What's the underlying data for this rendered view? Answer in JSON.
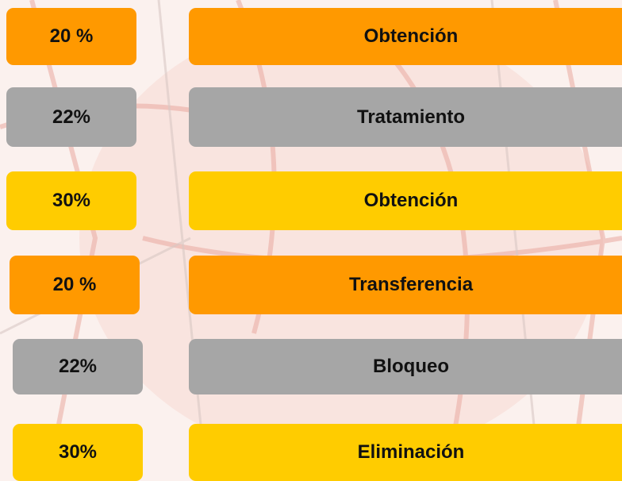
{
  "rows": [
    {
      "percent": "20 %",
      "label": "Obtención",
      "color": "#FF9900"
    },
    {
      "percent": "22%",
      "label": "Tratamiento",
      "color": "#A6A6A6"
    },
    {
      "percent": "30%",
      "label": "Obtención",
      "color": "#FFCC00"
    },
    {
      "percent": "20 %",
      "label": "Transferencia",
      "color": "#FF9900"
    },
    {
      "percent": "22%",
      "label": "Bloqueo",
      "color": "#A6A6A6"
    },
    {
      "percent": "30%",
      "label": "Eliminación",
      "color": "#FFCC00"
    }
  ]
}
